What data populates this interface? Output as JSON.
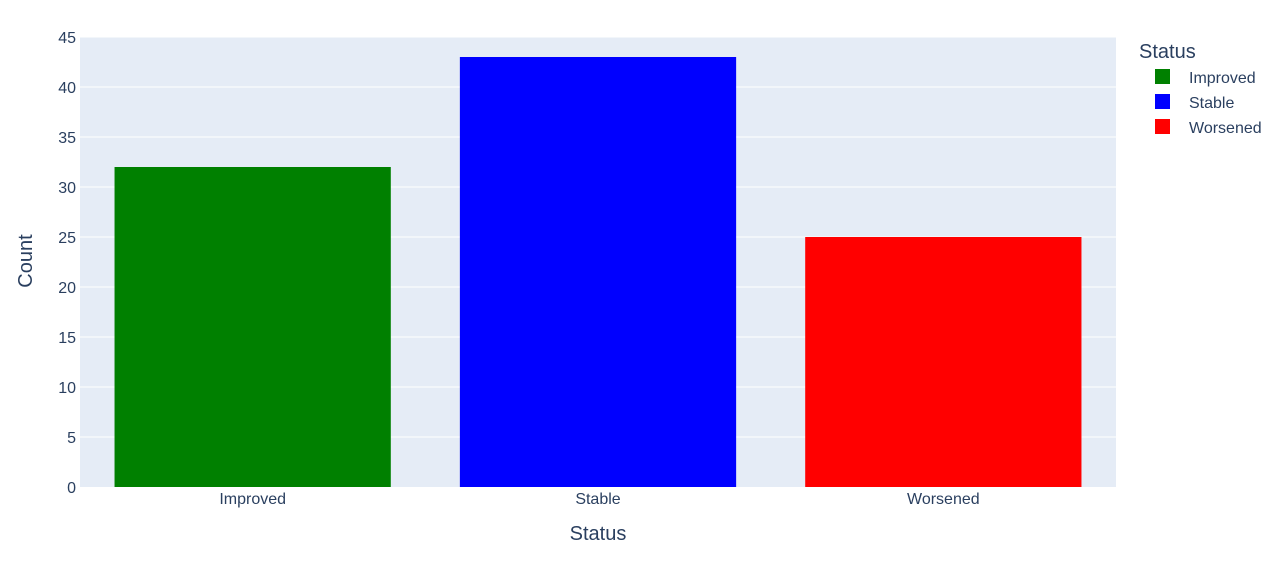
{
  "chart_data": {
    "type": "bar",
    "categories": [
      "Improved",
      "Stable",
      "Worsened"
    ],
    "values": [
      32,
      43,
      25
    ],
    "colors": [
      "#008000",
      "#0000ff",
      "#ff0000"
    ],
    "xlabel": "Status",
    "ylabel": "Count",
    "ylim": [
      0,
      45
    ],
    "yticks": [
      "0",
      "5",
      "10",
      "15",
      "20",
      "25",
      "30",
      "35",
      "40",
      "45"
    ],
    "grid": true,
    "plot_background": "#e5ecf6",
    "text_color": "#2a3f5f",
    "legend": {
      "title": "Status",
      "placement": "right",
      "entries": [
        "Improved",
        "Stable",
        "Worsened"
      ]
    }
  }
}
